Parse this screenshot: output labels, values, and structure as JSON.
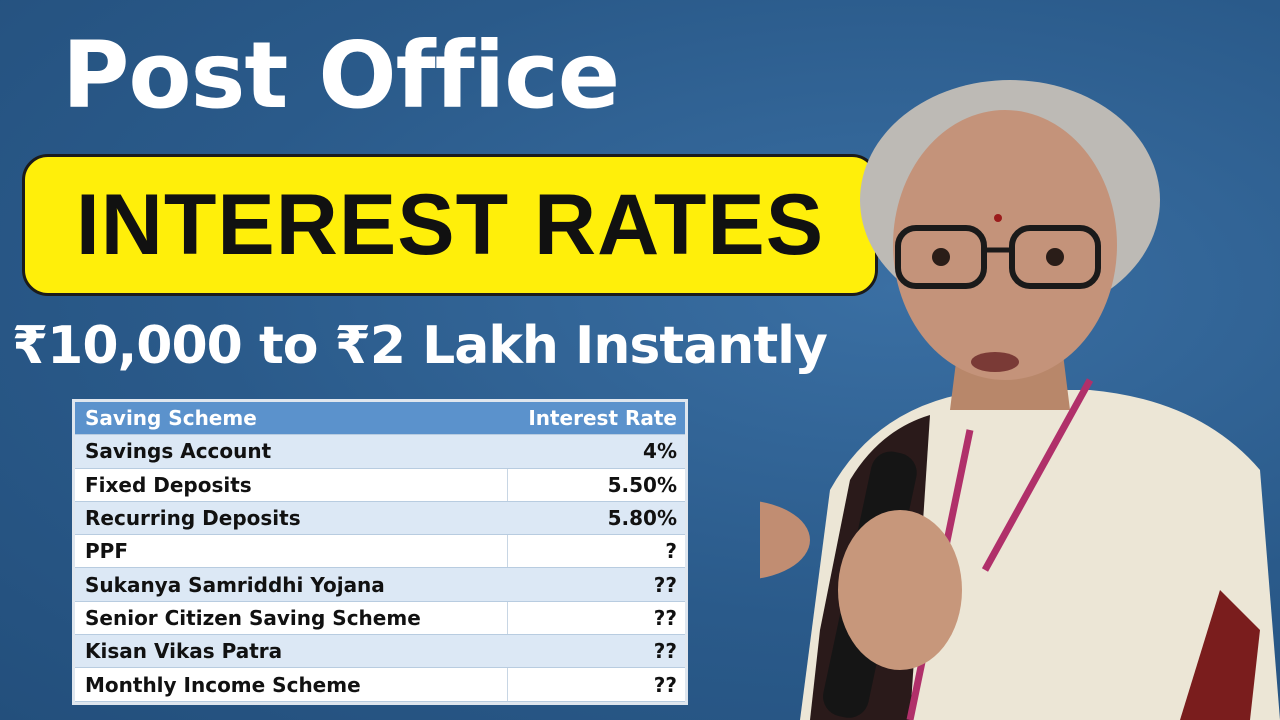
{
  "headline": "Post Office",
  "banner": "INTEREST RATES",
  "subheadline": "₹10,000 to ₹2 Lakh Instantly",
  "colors": {
    "background": "#2b5d8e",
    "banner": "#ffef0a",
    "table_header": "#5b92cc",
    "table_alt_row": "#dce8f5"
  },
  "table": {
    "headers": [
      "Saving Scheme",
      "Interest Rate"
    ],
    "rows": [
      {
        "scheme": "Savings Account",
        "rate": "4%"
      },
      {
        "scheme": "Fixed Deposits",
        "rate": "5.50%"
      },
      {
        "scheme": "Recurring Deposits",
        "rate": "5.80%"
      },
      {
        "scheme": "PPF",
        "rate": "?"
      },
      {
        "scheme": "Sukanya Samriddhi Yojana",
        "rate": "??"
      },
      {
        "scheme": "Senior Citizen Saving Scheme",
        "rate": "??"
      },
      {
        "scheme": "Kisan Vikas Patra",
        "rate": "??"
      },
      {
        "scheme": "Monthly Income Scheme",
        "rate": "??"
      }
    ]
  }
}
